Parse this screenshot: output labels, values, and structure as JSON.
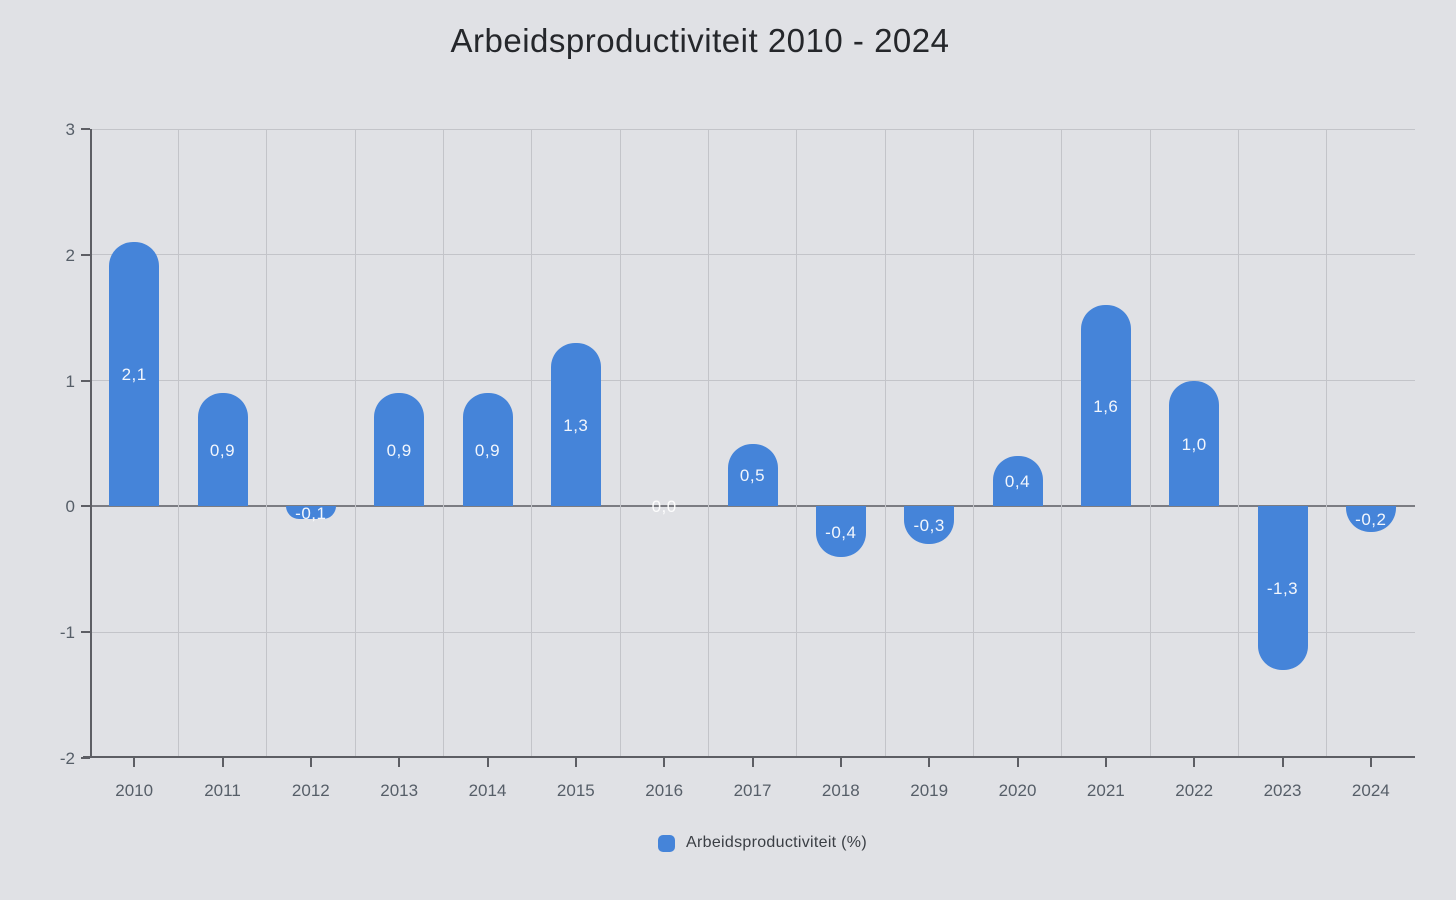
{
  "title": "Arbeidsproductiviteit 2010 - 2024",
  "legend": {
    "label": "Arbeidsproductiviteit (%)"
  },
  "colors": {
    "background": "#e0e1e5",
    "bar": "#4584d9",
    "gridline": "#c3c4c9",
    "axis": "#5d5e64",
    "zero_line": "#7b7c82",
    "bar_label": "#ffffff",
    "tick_label": "#565e68",
    "title": "#25272b"
  },
  "chart_data": {
    "type": "bar",
    "title": "Arbeidsproductiviteit 2010 - 2024",
    "categories": [
      "2010",
      "2011",
      "2012",
      "2013",
      "2014",
      "2015",
      "2016",
      "2017",
      "2018",
      "2019",
      "2020",
      "2021",
      "2022",
      "2023",
      "2024"
    ],
    "values": [
      2.1,
      0.9,
      -0.1,
      0.9,
      0.9,
      1.3,
      0.0,
      0.5,
      -0.4,
      -0.3,
      0.4,
      1.6,
      1.0,
      -1.3,
      -0.2
    ],
    "value_labels": [
      "2,1",
      "0,9",
      "-0,1",
      "0,9",
      "0,9",
      "1,3",
      "0,0",
      "0,5",
      "-0,4",
      "-0,3",
      "0,4",
      "1,6",
      "1,0",
      "-1,3",
      "-0,2"
    ],
    "series_name": "Arbeidsproductiviteit (%)",
    "xlabel": "",
    "ylabel": "",
    "y_ticks": [
      3,
      2,
      1,
      0,
      -1,
      -2
    ],
    "ylim": [
      -2,
      3
    ],
    "grid": true,
    "legend_position": "bottom",
    "bar_color": "#4584d9"
  }
}
